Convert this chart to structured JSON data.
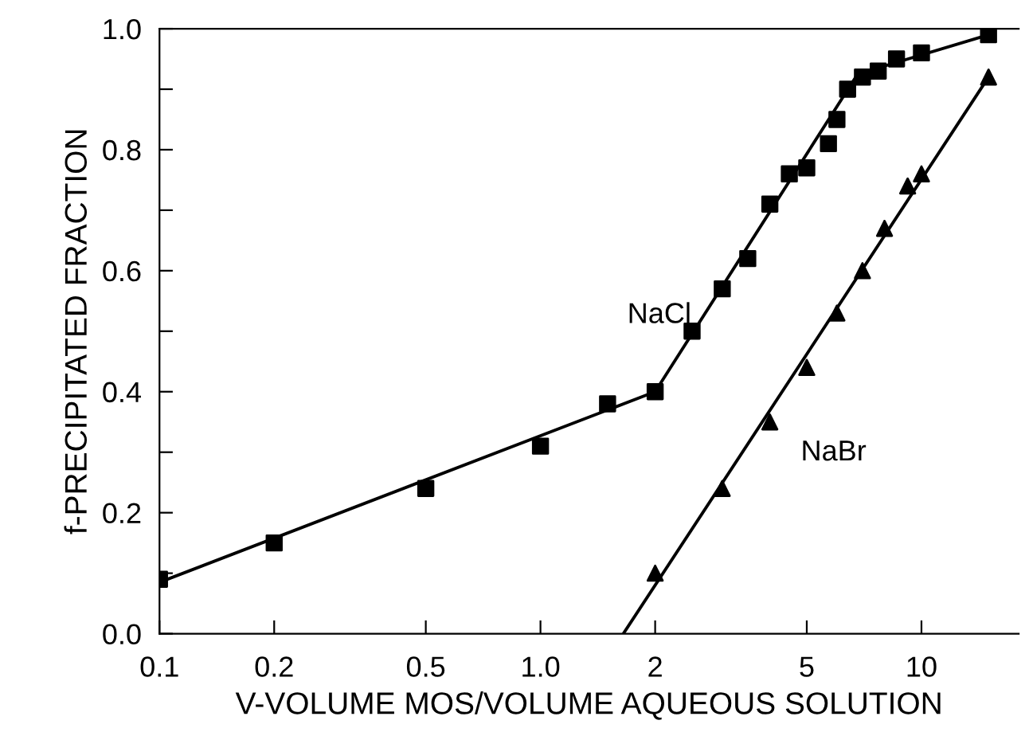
{
  "chart_data": {
    "type": "scatter",
    "xlabel": "V-VOLUME MOS/VOLUME AQUEOUS SOLUTION",
    "ylabel": "f-PRECIPITATED FRACTION",
    "log": "x",
    "grid": false,
    "legend": false,
    "xlim": [
      0.1,
      18
    ],
    "ylim": [
      0,
      1
    ],
    "xticks": [
      0.1,
      0.2,
      0.5,
      {
        "value": 1,
        "label": "1.0"
      },
      2,
      5,
      10
    ],
    "yticks": [
      {
        "value": 0,
        "label": "0.0"
      },
      {
        "value": 0.1,
        "label": null
      },
      {
        "value": 0.2,
        "label": "0.2"
      },
      {
        "value": 0.3,
        "label": null
      },
      {
        "value": 0.4,
        "label": "0.4"
      },
      {
        "value": 0.5,
        "label": null
      },
      {
        "value": 0.6,
        "label": "0.6"
      },
      {
        "value": 0.7,
        "label": null
      },
      {
        "value": 0.8,
        "label": "0.8"
      },
      {
        "value": 0.9,
        "label": null
      },
      {
        "value": 1,
        "label": "1.0"
      }
    ],
    "series": [
      {
        "name": "NaCl",
        "marker": "square",
        "color": "#000000",
        "x": [
          0.1,
          0.2,
          0.5,
          1.0,
          1.5,
          2.0,
          2.5,
          3.0,
          3.5,
          4.0,
          4.5,
          5.0,
          5.7,
          6.0,
          6.4,
          7.0,
          7.7,
          8.6,
          10,
          15
        ],
        "values": [
          0.09,
          0.15,
          0.24,
          0.31,
          0.38,
          0.4,
          0.5,
          0.57,
          0.62,
          0.71,
          0.76,
          0.77,
          0.81,
          0.85,
          0.9,
          0.92,
          0.93,
          0.95,
          0.96,
          0.99
        ]
      },
      {
        "name": "NaBr",
        "marker": "triangle",
        "color": "#000000",
        "x": [
          2.0,
          3.0,
          4.0,
          5.0,
          6.0,
          7.0,
          8.0,
          9.2,
          10,
          15
        ],
        "values": [
          0.1,
          0.24,
          0.35,
          0.44,
          0.53,
          0.6,
          0.67,
          0.74,
          0.76,
          0.92
        ]
      },
      {
        "type": "line",
        "marker": "none",
        "line_style": "solid",
        "color": "#000000",
        "x": [
          0.1,
          2.0,
          6.8,
          15
        ],
        "values": [
          0.085,
          0.4,
          0.925,
          0.99
        ]
      },
      {
        "type": "line",
        "marker": "none",
        "line_style": "solid",
        "color": "#000000",
        "x": [
          1.65,
          15
        ],
        "values": [
          0.0,
          0.92
        ]
      }
    ]
  }
}
